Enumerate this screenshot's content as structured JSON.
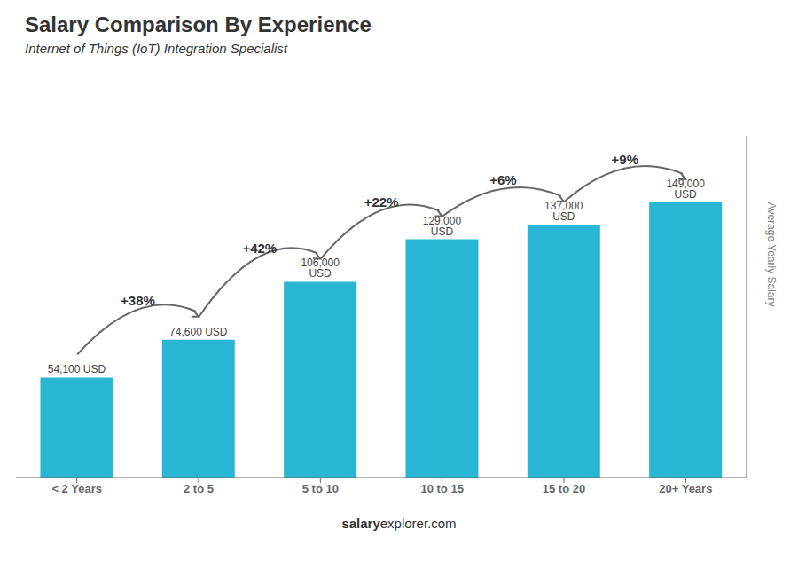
{
  "chart_data": {
    "type": "bar",
    "title": "Salary Comparison By Experience",
    "subtitle": "Internet of Things (IoT) Integration Specialist",
    "y_label": "Average Yearly Salary",
    "categories": [
      "< 2 Years",
      "2 to 5",
      "5 to 10",
      "10 to 15",
      "15 to 20",
      "20+ Years"
    ],
    "values": [
      54100,
      74600,
      106000,
      129000,
      137000,
      149000
    ],
    "value_labels": [
      "54,100 USD",
      "74,600 USD",
      "106,000 USD",
      "129,000 USD",
      "137,000 USD",
      "149,000 USD"
    ],
    "data_labels": true,
    "annotations": [
      "+38%",
      "+42%",
      "+22%",
      "+6%",
      "+9%"
    ],
    "footer": [
      "salary",
      "explorer.com"
    ],
    "color": "#29b6d4",
    "ylim": [
      0,
      185000
    ],
    "tick_labels": "x",
    "grid": false
  }
}
